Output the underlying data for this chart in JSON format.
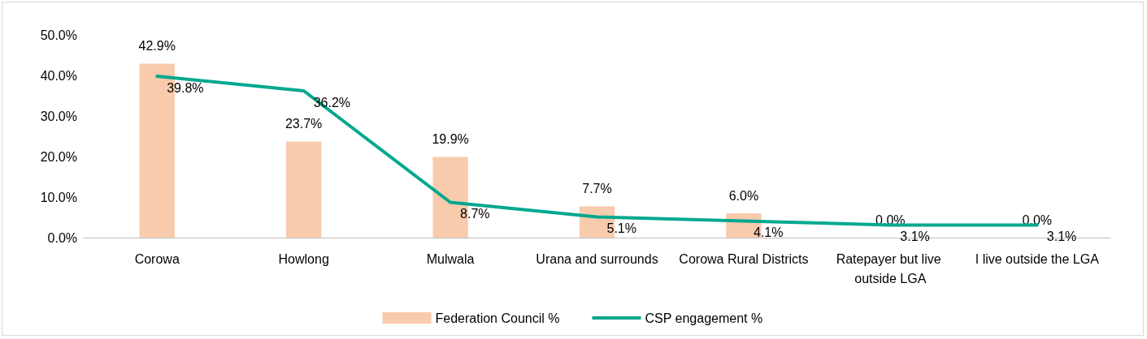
{
  "chart_data": {
    "type": "bar",
    "categories": [
      "Corowa",
      "Howlong",
      "Mulwala",
      "Urana and surrounds",
      "Corowa Rural Districts",
      "Ratepayer but live outside LGA",
      "I live outside the LGA"
    ],
    "series": [
      {
        "name": "Federation Council %",
        "color": "#f8cbad",
        "values": [
          42.9,
          23.7,
          19.9,
          7.7,
          6.0,
          0.0,
          0.0
        ],
        "value_labels": [
          "42.9%",
          "23.7%",
          "19.9%",
          "7.7%",
          "6.0%",
          "0.0%",
          "0.0%"
        ]
      },
      {
        "name": "CSP engagement %",
        "type": "line",
        "color": "#00a88f",
        "values": [
          39.8,
          36.2,
          8.7,
          5.1,
          4.1,
          3.1,
          3.1
        ],
        "value_labels": [
          "39.8%",
          "36.2%",
          "8.7%",
          "5.1%",
          "4.1%",
          "3.1%",
          "3.1%"
        ]
      }
    ],
    "ylim": [
      0,
      50
    ],
    "yticks": [
      {
        "value": 0,
        "label": "0.0%"
      },
      {
        "value": 10,
        "label": "10.0%"
      },
      {
        "value": 20,
        "label": "20.0%"
      },
      {
        "value": 30,
        "label": "30.0%"
      },
      {
        "value": 40,
        "label": "40.0%"
      },
      {
        "value": 50,
        "label": "50.0%"
      }
    ],
    "grid": false,
    "legend": "bottom",
    "marker": "none",
    "line_style": "solid"
  }
}
